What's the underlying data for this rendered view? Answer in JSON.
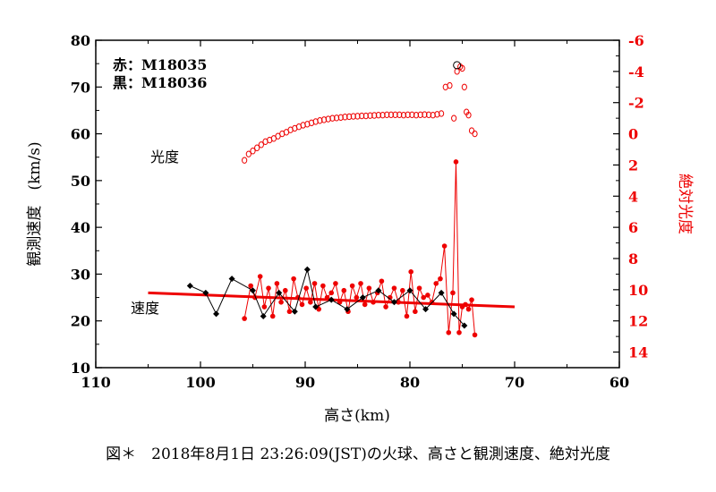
{
  "caption": "図＊　2018年8月1日 23:26:09(JST)の火球、高さと観測速度、絶対光度",
  "chart_data": {
    "type": "scatter",
    "xlabel": "高さ(km)",
    "ylabel_left": "観測速度　(km/s)",
    "ylabel_right": "絶対光度",
    "xlim": [
      110,
      60
    ],
    "ylim_left": [
      10,
      80
    ],
    "ylim_right": [
      15,
      -6
    ],
    "xticks": [
      110,
      100,
      90,
      80,
      70,
      60
    ],
    "yticks_left": [
      10,
      20,
      30,
      40,
      50,
      60,
      70,
      80
    ],
    "yticks_right": [
      14,
      12,
      10,
      8,
      6,
      4,
      2,
      0,
      -2,
      -4,
      -6
    ],
    "legend": [
      "赤：M18035",
      "黒：M18036"
    ],
    "annotations": [
      "光度",
      "速度"
    ],
    "colors": {
      "M18035": "#ee0000",
      "M18036": "#000000"
    },
    "series": [
      {
        "name": "M18035",
        "kind": "velocity",
        "axis": "left",
        "x": [
          95.8,
          95.2,
          94.8,
          94.3,
          93.9,
          93.5,
          93.1,
          92.7,
          92.3,
          91.9,
          91.5,
          91.1,
          90.7,
          90.3,
          89.9,
          89.5,
          89.1,
          88.7,
          88.3,
          87.9,
          87.5,
          87.1,
          86.7,
          86.3,
          85.9,
          85.5,
          85.1,
          84.7,
          84.3,
          83.9,
          83.5,
          83.1,
          82.7,
          82.3,
          81.9,
          81.5,
          81.1,
          80.7,
          80.3,
          79.9,
          79.5,
          79.1,
          78.7,
          78.3,
          77.9,
          77.5,
          77.1,
          76.7,
          76.3,
          75.9,
          75.6,
          75.3,
          75.0,
          74.7,
          74.4,
          74.1,
          73.8
        ],
        "y": [
          20.5,
          27.5,
          25,
          29.5,
          23,
          27,
          21,
          28,
          24,
          26.5,
          22,
          29,
          25,
          23.5,
          27,
          24,
          28,
          22.5,
          27.5,
          25,
          26,
          28,
          24,
          26.5,
          22,
          27.5,
          25,
          28,
          23.5,
          27,
          24,
          26,
          28.5,
          23,
          25,
          27,
          24,
          26.5,
          21,
          30.5,
          22,
          27,
          25,
          25.5,
          24,
          28,
          29,
          36,
          17.5,
          26,
          54,
          17.5,
          23,
          23.5,
          22.5,
          24.5,
          17
        ]
      },
      {
        "name": "M18035 fit",
        "kind": "velocity-fit",
        "axis": "left",
        "x": [
          105,
          70
        ],
        "y": [
          26,
          23
        ]
      },
      {
        "name": "M18036",
        "kind": "velocity",
        "axis": "left",
        "x": [
          101,
          99.5,
          98.5,
          97,
          95,
          94,
          92.5,
          91,
          89.8,
          89,
          87.5,
          86,
          84.5,
          83,
          81.5,
          80,
          78.5,
          77,
          75.8,
          74.8
        ],
        "y": [
          27.5,
          26,
          21.5,
          29,
          26.5,
          21,
          26,
          22,
          31,
          23,
          24.5,
          22.5,
          25,
          26.5,
          24,
          26.5,
          22.5,
          26,
          21.5,
          19
        ]
      },
      {
        "name": "M18035",
        "kind": "magnitude",
        "axis": "right",
        "x": [
          95.8,
          95.4,
          95,
          94.6,
          94.2,
          93.8,
          93.4,
          93,
          92.6,
          92.2,
          91.8,
          91.4,
          91,
          90.6,
          90.2,
          89.8,
          89.4,
          89,
          88.6,
          88.2,
          87.8,
          87.4,
          87,
          86.6,
          86.2,
          85.8,
          85.4,
          85,
          84.6,
          84.2,
          83.8,
          83.4,
          83,
          82.6,
          82.2,
          81.8,
          81.4,
          81,
          80.6,
          80.2,
          79.8,
          79.4,
          79,
          78.6,
          78.2,
          77.8,
          77.4,
          77,
          76.6,
          76.2,
          75.8,
          75.5,
          75.2,
          75,
          74.8,
          74.6,
          74.4,
          74.1,
          73.8
        ],
        "y": [
          1.7,
          1.3,
          1.1,
          0.9,
          0.7,
          0.5,
          0.4,
          0.3,
          0.15,
          0,
          -0.1,
          -0.25,
          -0.35,
          -0.45,
          -0.55,
          -0.62,
          -0.7,
          -0.78,
          -0.85,
          -0.9,
          -0.95,
          -1,
          -1.02,
          -1.05,
          -1.08,
          -1.1,
          -1.12,
          -1.13,
          -1.15,
          -1.15,
          -1.17,
          -1.18,
          -1.2,
          -1.2,
          -1.22,
          -1.22,
          -1.22,
          -1.22,
          -1.2,
          -1.22,
          -1.22,
          -1.2,
          -1.22,
          -1.23,
          -1.22,
          -1.2,
          -1.25,
          -1.3,
          -3.0,
          -3.1,
          -1.0,
          -4.0,
          -4.3,
          -4.2,
          -3.0,
          -1.4,
          -1.2,
          -0.2,
          0.0
        ]
      },
      {
        "name": "M18036",
        "kind": "magnitude",
        "axis": "right",
        "x": [
          75.5
        ],
        "y": [
          -4.4
        ]
      }
    ]
  }
}
